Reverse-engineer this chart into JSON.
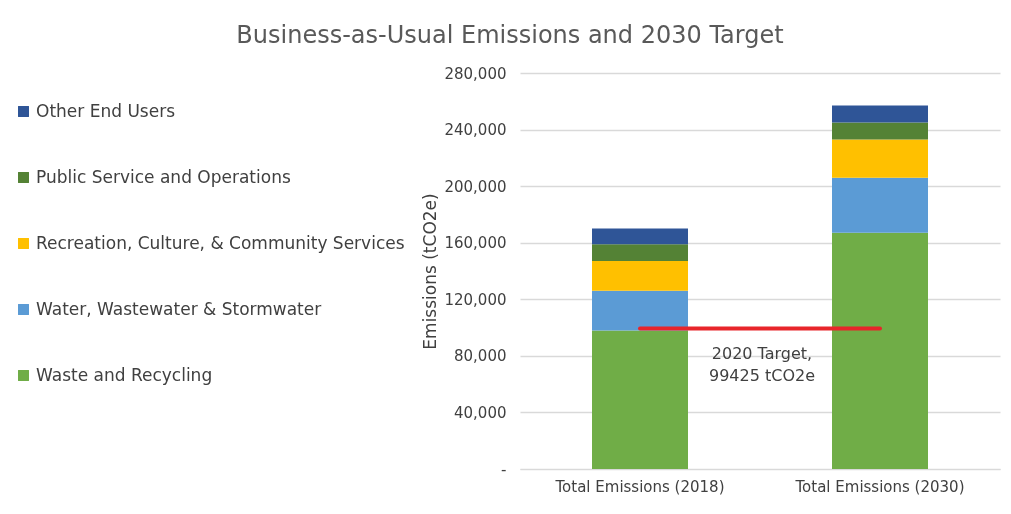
{
  "chart_data": {
    "type": "bar",
    "title": "Business-as-Usual Emissions and 2030 Target",
    "ylabel": "Emissions (tCO2e)",
    "categories": [
      "Total Emissions (2018)",
      "Total Emissions (2030)"
    ],
    "stacked": true,
    "series": [
      {
        "name": "Waste and Recycling",
        "color": "#70ad47",
        "values": [
          98000,
          167000
        ]
      },
      {
        "name": "Water, Wastewater & Stormwater",
        "color": "#5b9bd5",
        "values": [
          28000,
          39000
        ]
      },
      {
        "name": "Recreation, Culture, & Community Services",
        "color": "#ffc000",
        "values": [
          21000,
          27000
        ]
      },
      {
        "name": "Public Service and Operations",
        "color": "#548235",
        "values": [
          12000,
          12000
        ]
      },
      {
        "name": "Other End Users",
        "color": "#2f5597",
        "values": [
          11000,
          12000
        ]
      }
    ],
    "ylim": [
      0,
      280000
    ],
    "yticks": [
      {
        "value": 0,
        "label": "-"
      },
      {
        "value": 40000,
        "label": "40,000"
      },
      {
        "value": 80000,
        "label": "80,000"
      },
      {
        "value": 120000,
        "label": "120,000"
      },
      {
        "value": 160000,
        "label": "160,000"
      },
      {
        "value": 200000,
        "label": "200,000"
      },
      {
        "value": 240000,
        "label": "240,000"
      },
      {
        "value": 280000,
        "label": "280,000"
      }
    ],
    "ref_lines": [
      {
        "axis": "y",
        "value": 99425,
        "label": "2020 Target, 99425 tCO2e",
        "color": "#e8252a"
      }
    ],
    "grid": "y",
    "legend": "left"
  }
}
